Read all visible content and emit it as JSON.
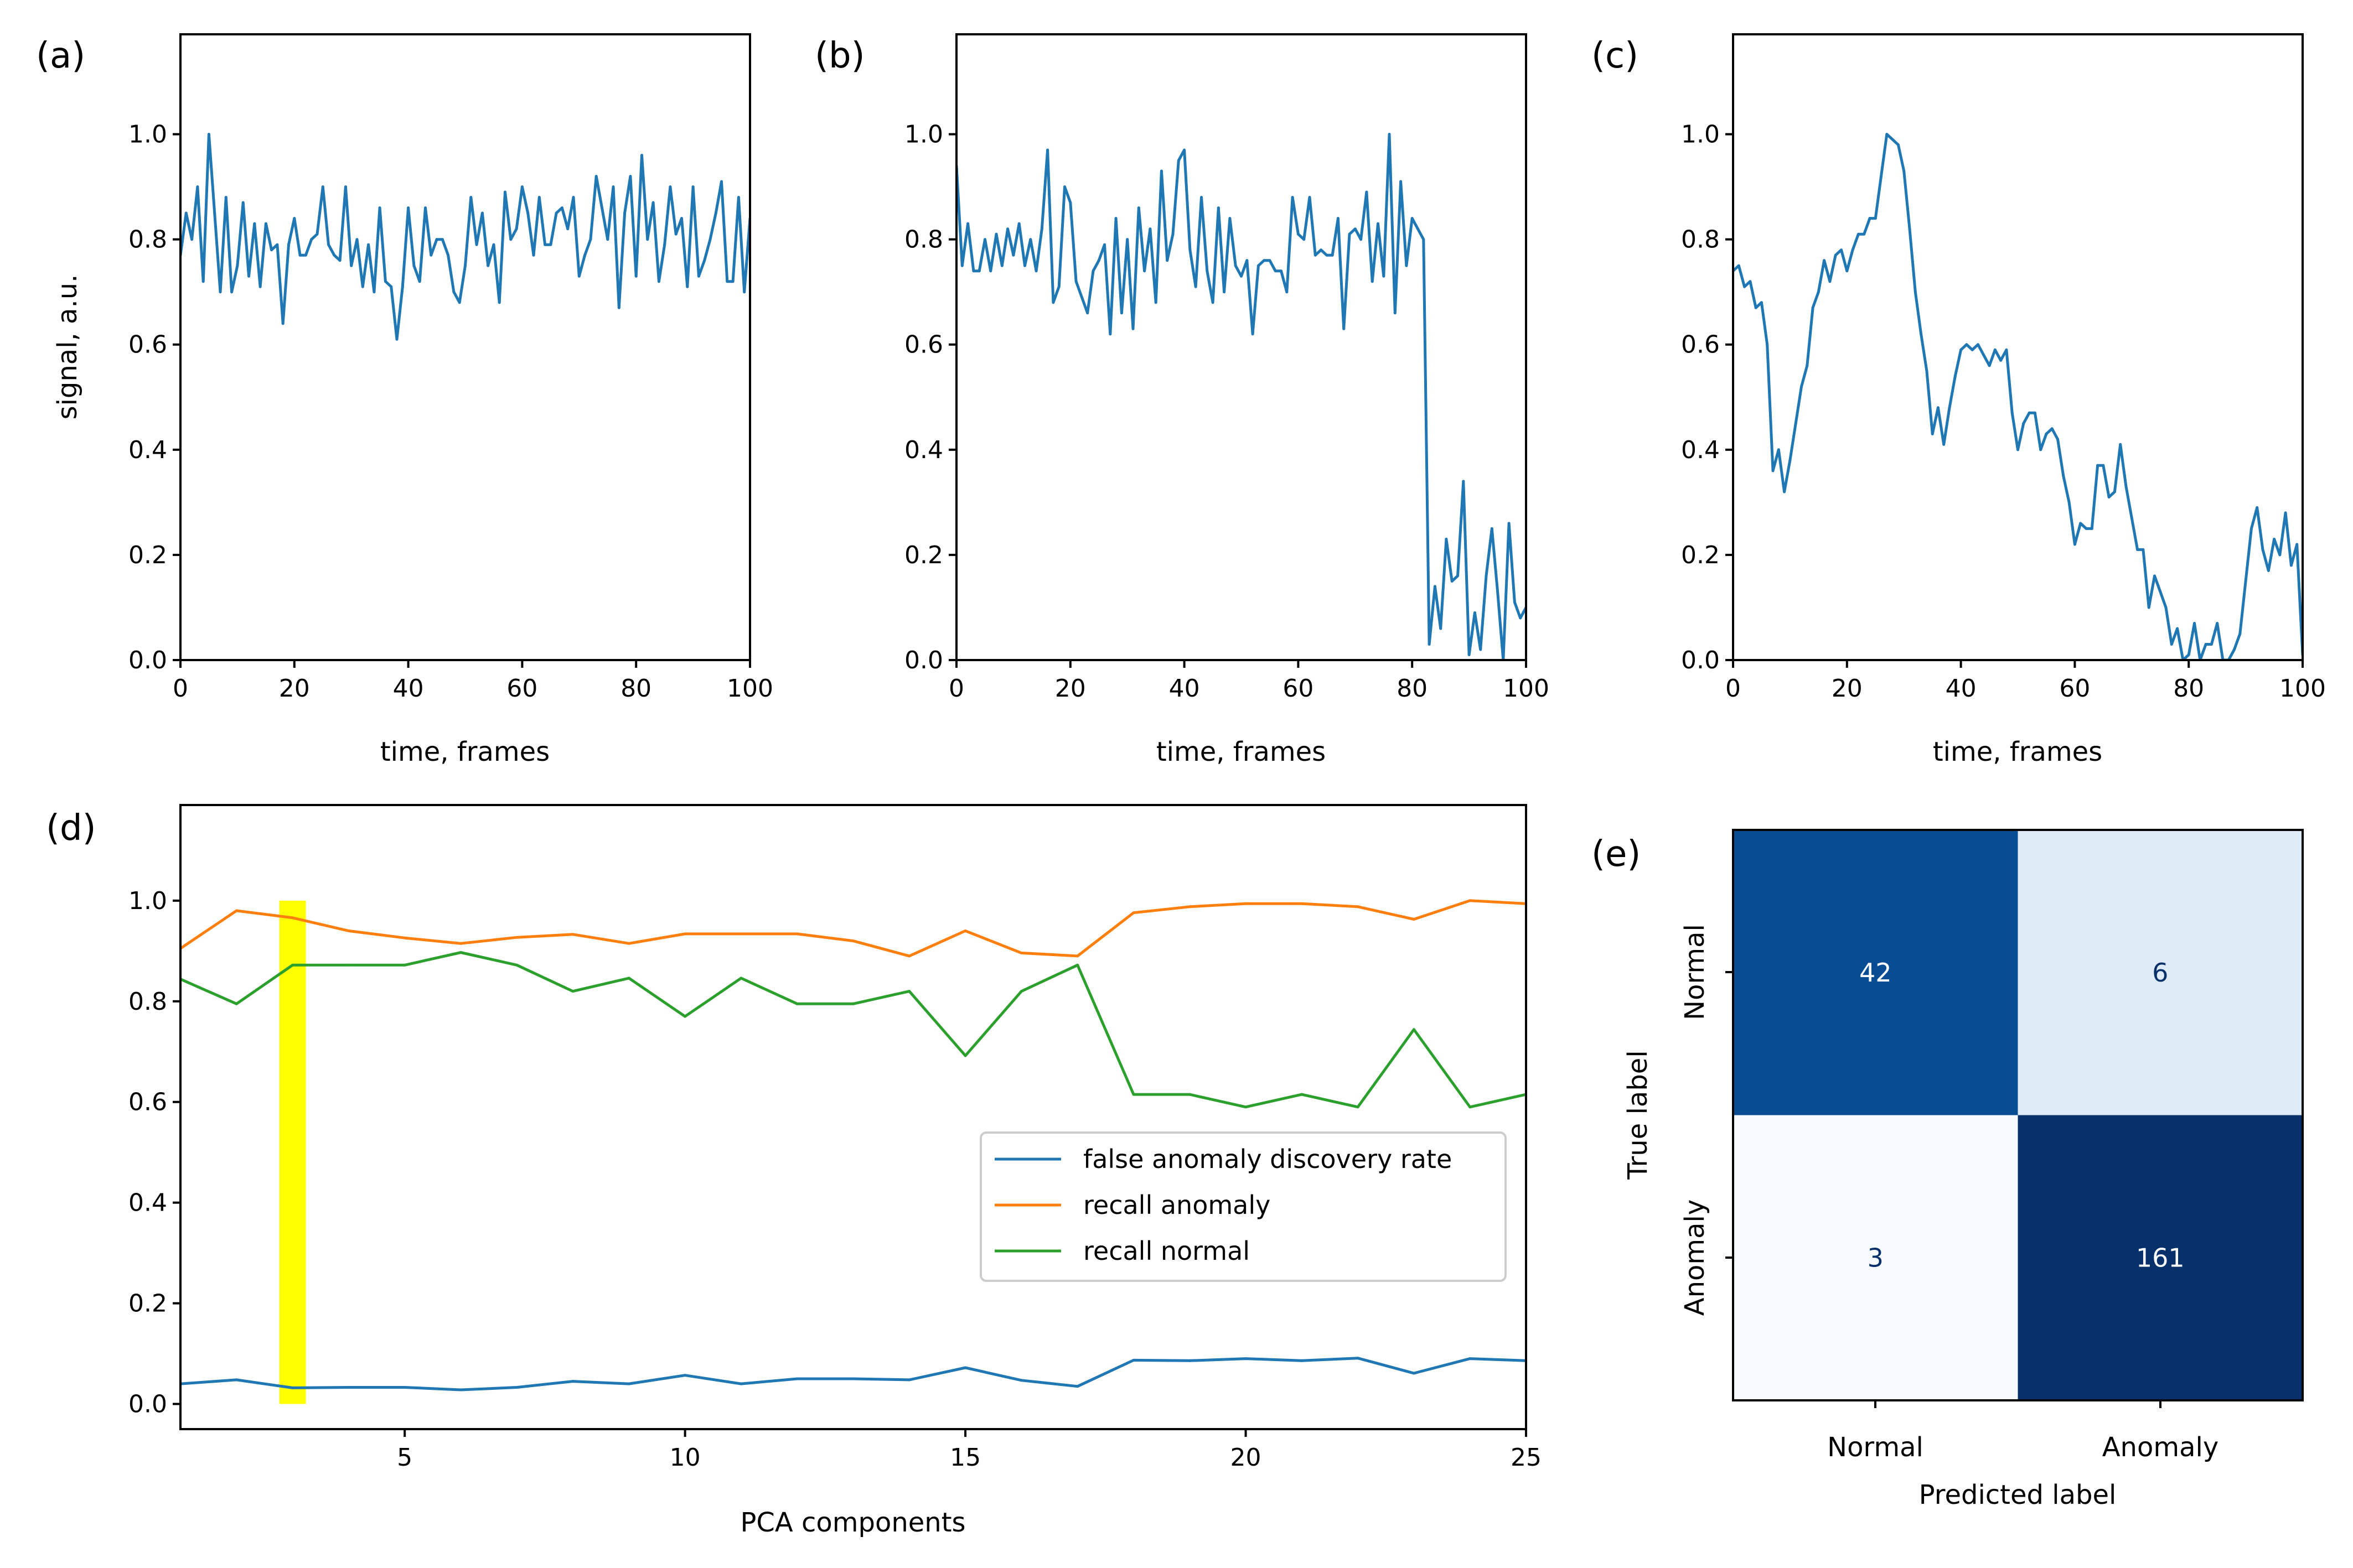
{
  "colors": {
    "blue": "#1f77b4",
    "orange": "#ff7f0e",
    "green": "#2ca02c",
    "highlight": "#ffff00",
    "cm_dark": "#08306b",
    "cm_mid": "#084d94",
    "cm_light": "#dfebf7",
    "cm_lightest": "#f7fbff"
  },
  "chart_data": [
    {
      "id": "a",
      "panel_label": "(a)",
      "type": "line",
      "xlabel": "time, frames",
      "ylabel": "signal, a.u.",
      "xlim": [
        0,
        100
      ],
      "ylim": [
        0,
        1.19
      ],
      "xticks": [
        "0",
        "20",
        "40",
        "60",
        "80",
        "100"
      ],
      "yticks": [
        "0.0",
        "0.2",
        "0.4",
        "0.6",
        "0.8",
        "1.0"
      ],
      "x_step": 1,
      "values": [
        0.77,
        0.85,
        0.8,
        0.9,
        0.72,
        1.0,
        0.85,
        0.7,
        0.88,
        0.7,
        0.75,
        0.87,
        0.73,
        0.83,
        0.71,
        0.83,
        0.78,
        0.79,
        0.64,
        0.79,
        0.84,
        0.77,
        0.77,
        0.8,
        0.81,
        0.9,
        0.79,
        0.77,
        0.76,
        0.9,
        0.75,
        0.8,
        0.71,
        0.79,
        0.7,
        0.86,
        0.72,
        0.71,
        0.61,
        0.71,
        0.86,
        0.75,
        0.72,
        0.86,
        0.77,
        0.8,
        0.8,
        0.77,
        0.7,
        0.68,
        0.75,
        0.88,
        0.79,
        0.85,
        0.75,
        0.79,
        0.68,
        0.89,
        0.8,
        0.82,
        0.9,
        0.85,
        0.77,
        0.88,
        0.79,
        0.79,
        0.85,
        0.86,
        0.82,
        0.88,
        0.73,
        0.77,
        0.8,
        0.92,
        0.86,
        0.8,
        0.9,
        0.67,
        0.85,
        0.92,
        0.73,
        0.96,
        0.8,
        0.87,
        0.72,
        0.79,
        0.9,
        0.81,
        0.84,
        0.71,
        0.9,
        0.73,
        0.76,
        0.8,
        0.85,
        0.91,
        0.72,
        0.72,
        0.88,
        0.7,
        0.84
      ]
    },
    {
      "id": "b",
      "panel_label": "(b)",
      "type": "line",
      "xlabel": "time, frames",
      "ylabel": "",
      "xlim": [
        0,
        100
      ],
      "ylim": [
        0,
        1.19
      ],
      "xticks": [
        "0",
        "20",
        "40",
        "60",
        "80",
        "100"
      ],
      "yticks": [
        "0.0",
        "0.2",
        "0.4",
        "0.6",
        "0.8",
        "1.0"
      ],
      "x_step": 1,
      "values": [
        0.94,
        0.75,
        0.83,
        0.74,
        0.74,
        0.8,
        0.74,
        0.81,
        0.75,
        0.82,
        0.77,
        0.83,
        0.75,
        0.8,
        0.74,
        0.82,
        0.97,
        0.68,
        0.71,
        0.9,
        0.87,
        0.72,
        0.69,
        0.66,
        0.74,
        0.76,
        0.79,
        0.62,
        0.84,
        0.66,
        0.8,
        0.63,
        0.86,
        0.74,
        0.82,
        0.68,
        0.93,
        0.76,
        0.81,
        0.95,
        0.97,
        0.78,
        0.71,
        0.88,
        0.74,
        0.68,
        0.86,
        0.7,
        0.84,
        0.75,
        0.73,
        0.76,
        0.62,
        0.75,
        0.76,
        0.76,
        0.74,
        0.74,
        0.7,
        0.88,
        0.81,
        0.8,
        0.88,
        0.77,
        0.78,
        0.77,
        0.77,
        0.84,
        0.63,
        0.81,
        0.82,
        0.8,
        0.89,
        0.72,
        0.83,
        0.73,
        1.0,
        0.66,
        0.91,
        0.75,
        0.84,
        0.82,
        0.8,
        0.03,
        0.14,
        0.06,
        0.23,
        0.15,
        0.16,
        0.34,
        0.01,
        0.09,
        0.02,
        0.16,
        0.25,
        0.13,
        0.0,
        0.26,
        0.11,
        0.08,
        0.1
      ]
    },
    {
      "id": "c",
      "panel_label": "(c)",
      "type": "line",
      "xlabel": "time, frames",
      "ylabel": "",
      "xlim": [
        0,
        100
      ],
      "ylim": [
        0,
        1.19
      ],
      "xticks": [
        "0",
        "20",
        "40",
        "60",
        "80",
        "100"
      ],
      "yticks": [
        "0.0",
        "0.2",
        "0.4",
        "0.6",
        "0.8",
        "1.0"
      ],
      "x_step": 1,
      "values": [
        0.74,
        0.75,
        0.71,
        0.72,
        0.67,
        0.68,
        0.6,
        0.36,
        0.4,
        0.32,
        0.38,
        0.45,
        0.52,
        0.56,
        0.67,
        0.7,
        0.76,
        0.72,
        0.77,
        0.78,
        0.74,
        0.78,
        0.81,
        0.81,
        0.84,
        0.84,
        0.92,
        1.0,
        0.99,
        0.98,
        0.93,
        0.82,
        0.7,
        0.62,
        0.55,
        0.43,
        0.48,
        0.41,
        0.48,
        0.54,
        0.59,
        0.6,
        0.59,
        0.6,
        0.58,
        0.56,
        0.59,
        0.57,
        0.59,
        0.47,
        0.4,
        0.45,
        0.47,
        0.47,
        0.4,
        0.43,
        0.44,
        0.42,
        0.35,
        0.3,
        0.22,
        0.26,
        0.25,
        0.25,
        0.37,
        0.37,
        0.31,
        0.32,
        0.41,
        0.33,
        0.27,
        0.21,
        0.21,
        0.1,
        0.16,
        0.13,
        0.1,
        0.03,
        0.06,
        0.0,
        0.01,
        0.07,
        0.0,
        0.03,
        0.03,
        0.07,
        0.0,
        0.0,
        0.02,
        0.05,
        0.15,
        0.25,
        0.29,
        0.21,
        0.17,
        0.23,
        0.2,
        0.28,
        0.18,
        0.22,
        0.01
      ]
    },
    {
      "id": "d",
      "panel_label": "(d)",
      "type": "line",
      "xlabel": "PCA components",
      "ylabel": "",
      "xlim": [
        1,
        25
      ],
      "ylim": [
        -0.05,
        1.19
      ],
      "xticks": [
        "5",
        "10",
        "15",
        "20",
        "25"
      ],
      "yticks": [
        "0.0",
        "0.2",
        "0.4",
        "0.6",
        "0.8",
        "1.0"
      ],
      "x": [
        1,
        2,
        3,
        4,
        5,
        6,
        7,
        8,
        9,
        10,
        11,
        12,
        13,
        14,
        15,
        16,
        17,
        18,
        19,
        20,
        21,
        22,
        23,
        24,
        25
      ],
      "highlight_x": 3,
      "series": [
        {
          "name": "false anomaly discovery rate",
          "color_key": "blue",
          "values": [
            0.04,
            0.048,
            0.032,
            0.033,
            0.033,
            0.028,
            0.033,
            0.045,
            0.04,
            0.057,
            0.04,
            0.05,
            0.05,
            0.048,
            0.072,
            0.047,
            0.035,
            0.087,
            0.086,
            0.09,
            0.086,
            0.091,
            0.061,
            0.09,
            0.086
          ]
        },
        {
          "name": "recall anomaly",
          "color_key": "orange",
          "values": [
            0.905,
            0.98,
            0.966,
            0.94,
            0.926,
            0.915,
            0.927,
            0.933,
            0.915,
            0.934,
            0.934,
            0.934,
            0.92,
            0.89,
            0.94,
            0.896,
            0.89,
            0.976,
            0.988,
            0.994,
            0.994,
            0.988,
            0.963,
            1.0,
            0.994
          ]
        },
        {
          "name": "recall normal",
          "color_key": "green",
          "values": [
            0.844,
            0.795,
            0.872,
            0.872,
            0.872,
            0.897,
            0.872,
            0.82,
            0.846,
            0.77,
            0.846,
            0.795,
            0.795,
            0.82,
            0.692,
            0.82,
            0.872,
            0.615,
            0.615,
            0.59,
            0.615,
            0.59,
            0.744,
            0.59,
            0.615
          ]
        }
      ]
    },
    {
      "id": "e",
      "panel_label": "(e)",
      "type": "heatmap",
      "xlabel": "Predicted label",
      "ylabel": "True label",
      "x_categories": [
        "Normal",
        "Anomaly"
      ],
      "y_categories": [
        "Normal",
        "Anomaly"
      ],
      "matrix": [
        [
          42,
          6
        ],
        [
          3,
          161
        ]
      ]
    }
  ]
}
